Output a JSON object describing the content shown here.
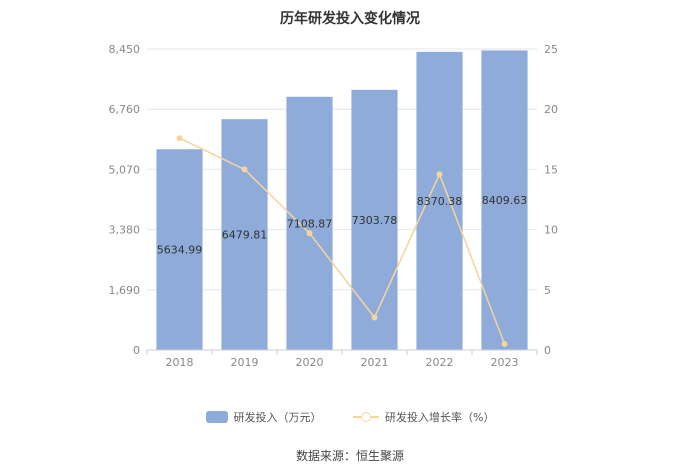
{
  "chart_data": {
    "type": "bar",
    "title": "历年研发投入变化情况",
    "categories": [
      "2018",
      "2019",
      "2020",
      "2021",
      "2022",
      "2023"
    ],
    "series": [
      {
        "name": "研发投入（万元）",
        "type": "bar",
        "axis": "left",
        "values": [
          5634.99,
          6479.81,
          7108.87,
          7303.78,
          8370.38,
          8409.63
        ],
        "labels": [
          "5634.99",
          "6479.81",
          "7108.87",
          "7303.78",
          "8370.38",
          "8409.63"
        ],
        "color": "#8eabd9"
      },
      {
        "name": "研发投入增长率（%）",
        "type": "line",
        "axis": "right",
        "values": [
          17.6,
          15.0,
          9.7,
          2.7,
          14.6,
          0.5
        ],
        "color": "#f6d49b"
      }
    ],
    "y_left": {
      "min": 0,
      "max": 8450,
      "ticks": [
        0,
        1690,
        3380,
        5070,
        6760,
        8450
      ],
      "tick_labels": [
        "0",
        "1,690",
        "3,380",
        "5,070",
        "6,760",
        "8,450"
      ]
    },
    "y_right": {
      "min": 0,
      "max": 25,
      "ticks": [
        0,
        5,
        10,
        15,
        20,
        25
      ],
      "tick_labels": [
        "0",
        "5",
        "10",
        "15",
        "20",
        "25"
      ]
    },
    "grid": true,
    "legend_position": "bottom",
    "source": "数据来源：恒生聚源"
  }
}
